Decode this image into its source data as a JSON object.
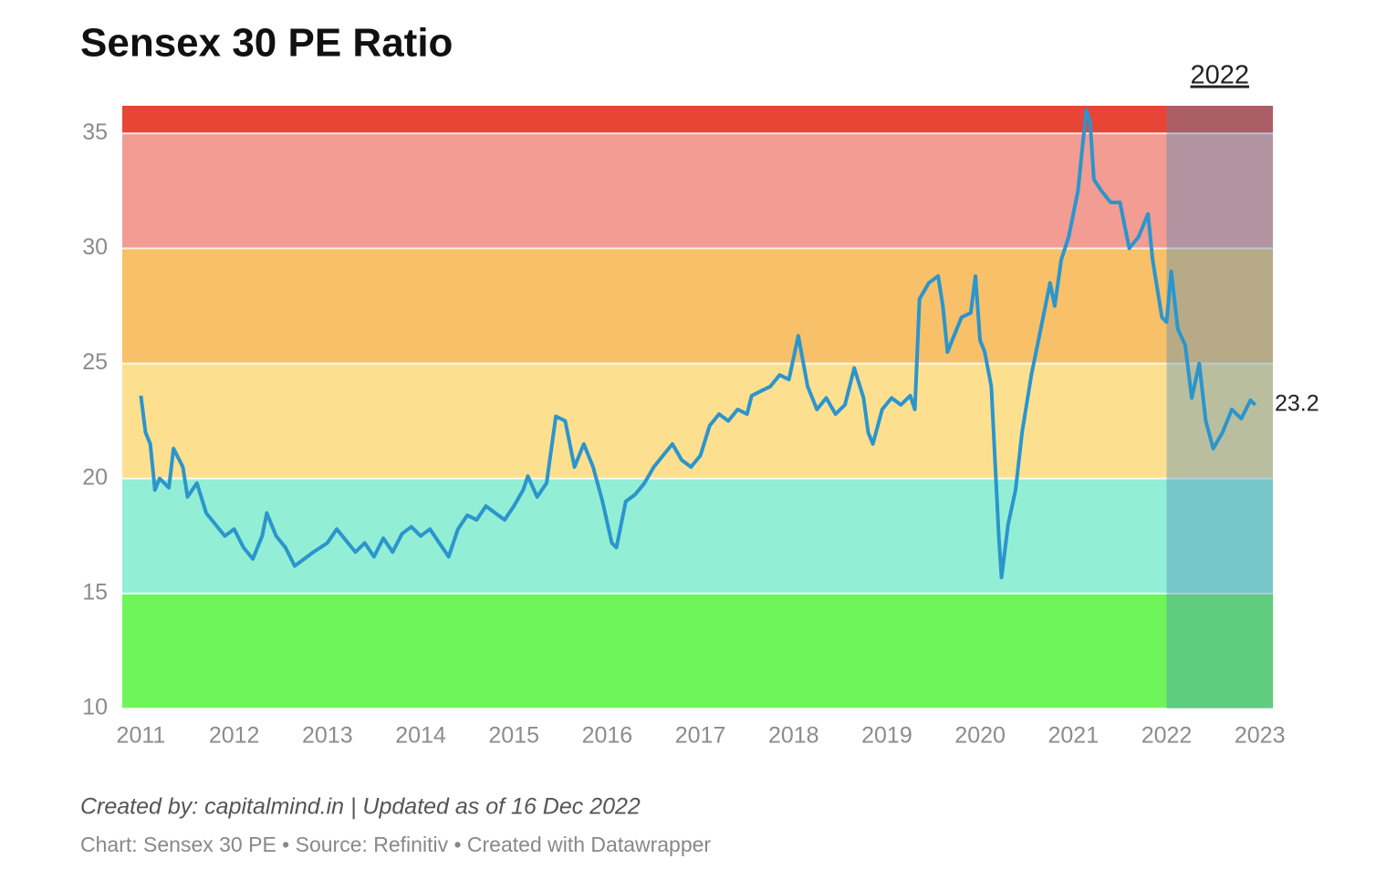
{
  "chart_data": {
    "type": "line",
    "title": "Sensex 30 PE Ratio",
    "credit": "Created by: capitalmind.in | Updated as of 16 Dec 2022",
    "source": "Chart: Sensex 30 PE • Source: Refinitiv • Created with Datawrapper",
    "xlim": [
      2010.8,
      2023.14
    ],
    "xticks": [
      2011,
      2012,
      2013,
      2014,
      2015,
      2016,
      2017,
      2018,
      2019,
      2020,
      2021,
      2022,
      2023
    ],
    "ylim": [
      10,
      36.2
    ],
    "yticks": [
      10,
      15,
      20,
      25,
      30,
      35
    ],
    "grid": true,
    "bands": [
      {
        "from": 10,
        "to": 15,
        "color": "#6ef55a"
      },
      {
        "from": 15,
        "to": 20,
        "color": "#93eed6"
      },
      {
        "from": 20,
        "to": 25,
        "color": "#fde08f"
      },
      {
        "from": 25,
        "to": 30,
        "color": "#f8c068"
      },
      {
        "from": 30,
        "to": 35,
        "color": "#f29c93"
      },
      {
        "from": 35,
        "to": 36.2,
        "color": "#e84536"
      }
    ],
    "highlight": {
      "label": "2022",
      "from": 2022,
      "color": "#4a88b8"
    },
    "series": [
      {
        "name": "Sensex 30 PE",
        "color": "#2b95cd",
        "x": [
          2011.0,
          2011.05,
          2011.1,
          2011.15,
          2011.2,
          2011.3,
          2011.35,
          2011.45,
          2011.5,
          2011.6,
          2011.7,
          2011.8,
          2011.9,
          2012.0,
          2012.1,
          2012.2,
          2012.3,
          2012.35,
          2012.45,
          2012.55,
          2012.65,
          2012.75,
          2012.85,
          2013.0,
          2013.1,
          2013.2,
          2013.3,
          2013.4,
          2013.5,
          2013.6,
          2013.7,
          2013.8,
          2013.9,
          2014.0,
          2014.1,
          2014.2,
          2014.3,
          2014.4,
          2014.5,
          2014.6,
          2014.7,
          2014.8,
          2014.9,
          2015.0,
          2015.1,
          2015.15,
          2015.25,
          2015.35,
          2015.45,
          2015.55,
          2015.65,
          2015.75,
          2015.85,
          2015.95,
          2016.05,
          2016.1,
          2016.2,
          2016.3,
          2016.4,
          2016.5,
          2016.6,
          2016.7,
          2016.8,
          2016.9,
          2017.0,
          2017.1,
          2017.2,
          2017.3,
          2017.4,
          2017.5,
          2017.55,
          2017.65,
          2017.75,
          2017.85,
          2017.95,
          2018.05,
          2018.15,
          2018.25,
          2018.35,
          2018.45,
          2018.55,
          2018.65,
          2018.75,
          2018.8,
          2018.85,
          2018.95,
          2019.05,
          2019.15,
          2019.25,
          2019.3,
          2019.35,
          2019.45,
          2019.55,
          2019.6,
          2019.65,
          2019.7,
          2019.8,
          2019.9,
          2019.95,
          2020.0,
          2020.05,
          2020.12,
          2020.2,
          2020.23,
          2020.3,
          2020.38,
          2020.45,
          2020.55,
          2020.65,
          2020.75,
          2020.8,
          2020.87,
          2020.95,
          2021.05,
          2021.1,
          2021.14,
          2021.18,
          2021.22,
          2021.3,
          2021.4,
          2021.5,
          2021.6,
          2021.7,
          2021.8,
          2021.85,
          2021.95,
          2022.0,
          2022.05,
          2022.12,
          2022.2,
          2022.27,
          2022.35,
          2022.42,
          2022.5,
          2022.6,
          2022.7,
          2022.8,
          2022.9,
          2022.95
        ],
        "values": [
          23.6,
          22,
          21.5,
          19.5,
          20,
          19.6,
          21.3,
          20.5,
          19.2,
          19.8,
          18.5,
          18,
          17.5,
          17.8,
          17,
          16.5,
          17.5,
          18.5,
          17.5,
          17,
          16.2,
          16.5,
          16.8,
          17.2,
          17.8,
          17.3,
          16.8,
          17.2,
          16.6,
          17.4,
          16.8,
          17.6,
          17.9,
          17.5,
          17.8,
          17.2,
          16.6,
          17.8,
          18.4,
          18.2,
          18.8,
          18.5,
          18.2,
          18.8,
          19.5,
          20.1,
          19.2,
          19.8,
          22.7,
          22.5,
          20.5,
          21.5,
          20.5,
          19,
          17.2,
          17,
          19,
          19.3,
          19.8,
          20.5,
          21,
          21.5,
          20.8,
          20.5,
          21,
          22.3,
          22.8,
          22.5,
          23,
          22.8,
          23.6,
          23.8,
          24,
          24.5,
          24.3,
          26.2,
          24,
          23,
          23.5,
          22.8,
          23.2,
          24.8,
          23.5,
          22,
          21.5,
          23,
          23.5,
          23.2,
          23.6,
          23,
          27.8,
          28.5,
          28.8,
          27.5,
          25.5,
          26,
          27,
          27.2,
          28.8,
          26,
          25.5,
          24,
          17.5,
          15.7,
          18,
          19.5,
          22,
          24.5,
          26.5,
          28.5,
          27.5,
          29.5,
          30.5,
          32.5,
          34.5,
          36,
          35.5,
          33,
          32.5,
          32,
          32,
          30,
          30.5,
          31.5,
          29.5,
          27,
          26.8,
          29,
          26.5,
          25.8,
          23.5,
          25,
          22.5,
          21.3,
          22,
          23,
          22.6,
          23.4,
          23.2
        ]
      }
    ]
  }
}
